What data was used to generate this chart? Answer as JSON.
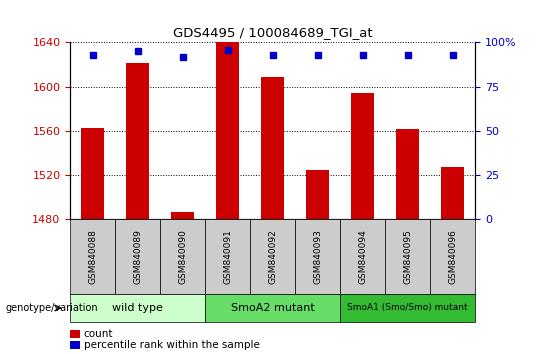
{
  "title": "GDS4495 / 100084689_TGI_at",
  "samples": [
    "GSM840088",
    "GSM840089",
    "GSM840090",
    "GSM840091",
    "GSM840092",
    "GSM840093",
    "GSM840094",
    "GSM840095",
    "GSM840096"
  ],
  "counts": [
    1563,
    1621,
    1487,
    1640,
    1609,
    1525,
    1594,
    1562,
    1527
  ],
  "percentile_ranks": [
    93,
    95,
    92,
    96,
    93,
    93,
    93,
    93,
    93
  ],
  "ylim_left": [
    1480,
    1640
  ],
  "ylim_right": [
    0,
    100
  ],
  "yticks_left": [
    1480,
    1520,
    1560,
    1600,
    1640
  ],
  "yticks_right": [
    0,
    25,
    50,
    75,
    100
  ],
  "groups": [
    {
      "label": "wild type",
      "start": 0,
      "end": 3,
      "color": "#ccffcc"
    },
    {
      "label": "SmoA2 mutant",
      "start": 3,
      "end": 6,
      "color": "#66dd66"
    },
    {
      "label": "SmoA1 (Smo/Smo) mutant",
      "start": 6,
      "end": 9,
      "color": "#33bb33"
    }
  ],
  "bar_color": "#cc0000",
  "marker_color": "#0000cc",
  "bar_width": 0.5,
  "background_color": "#ffffff",
  "tick_label_color_left": "#cc0000",
  "tick_label_color_right": "#0000cc",
  "legend_count_color": "#cc0000",
  "legend_pct_color": "#0000cc",
  "genotype_label": "genotype/variation",
  "base_value": 1480,
  "sample_bg_color": "#cccccc"
}
